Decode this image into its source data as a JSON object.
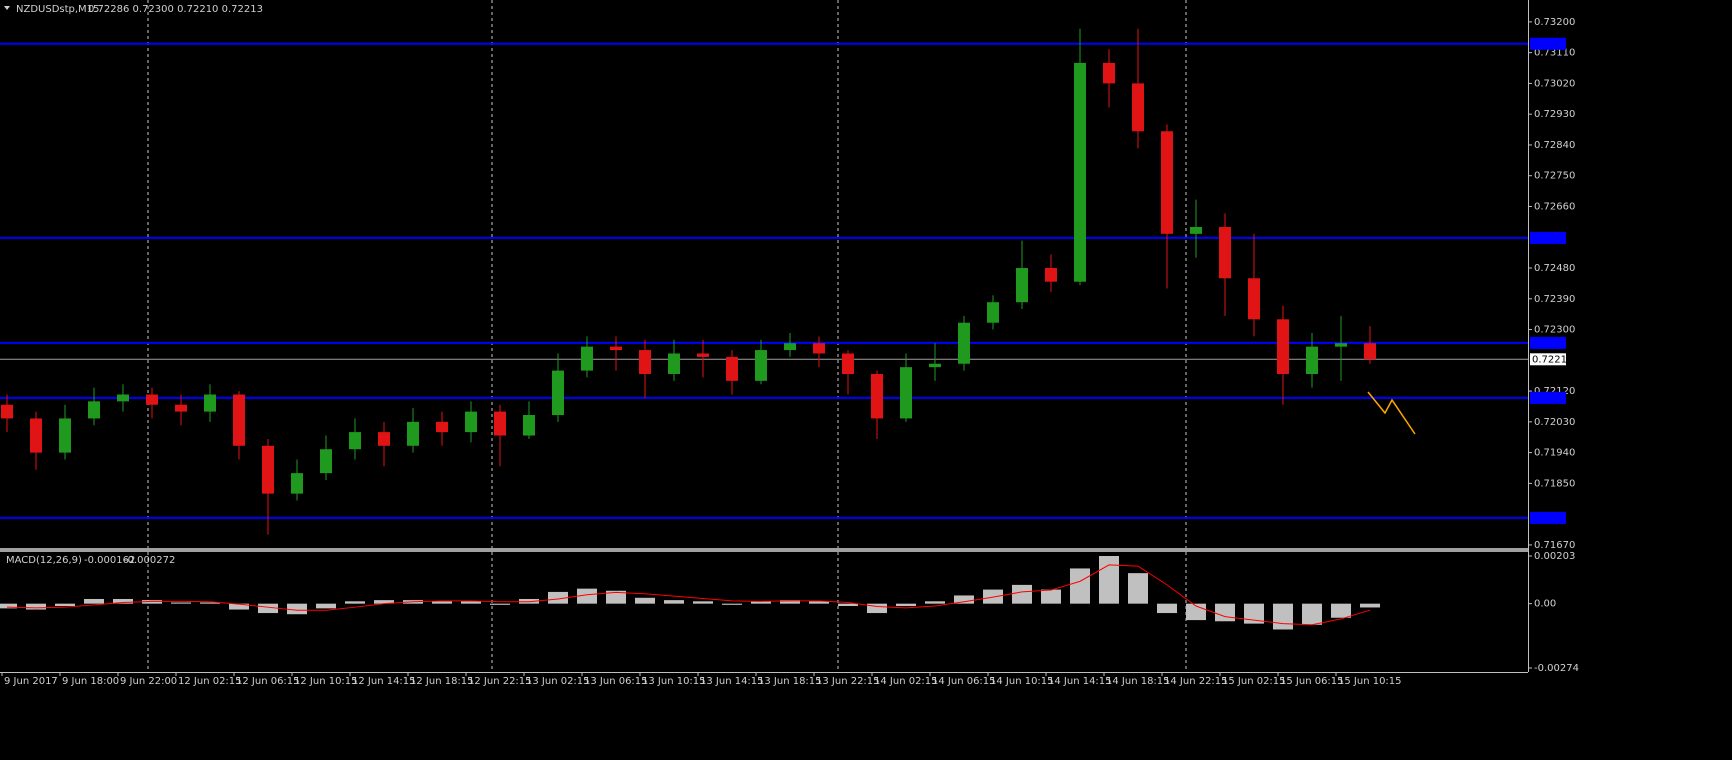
{
  "chart_data": [
    {
      "type": "candlestick",
      "title": "NZDUSDstp,M15",
      "subtitle": "0.72286 0.72300 0.72210 0.72213",
      "open": [
        0.7208,
        0.7204,
        0.7194,
        0.7204,
        0.7209,
        0.7211,
        0.7208,
        0.7206,
        0.7211,
        0.7196,
        0.7182,
        0.7188,
        0.7195,
        0.72,
        0.7196,
        0.7203,
        0.72,
        0.7206,
        0.7199,
        0.7205,
        0.7218,
        0.7225,
        0.7224,
        0.7217,
        0.7223,
        0.7222,
        0.7215,
        0.7224,
        0.7226,
        0.7223,
        0.7217,
        0.7204,
        0.7219,
        0.722,
        0.7232,
        0.7238,
        0.7248,
        0.7244,
        0.7308,
        0.7302,
        0.7288,
        0.7258,
        0.726,
        0.7245,
        0.7233,
        0.7217,
        0.7225,
        0.7226
      ],
      "high": [
        0.7211,
        0.7206,
        0.7208,
        0.7213,
        0.7214,
        0.7213,
        0.7211,
        0.7214,
        0.7212,
        0.7198,
        0.7192,
        0.7199,
        0.7204,
        0.7203,
        0.7207,
        0.7206,
        0.7209,
        0.7208,
        0.7209,
        0.7223,
        0.7228,
        0.7228,
        0.7227,
        0.7227,
        0.7227,
        0.7224,
        0.7227,
        0.7229,
        0.7228,
        0.7224,
        0.7218,
        0.7223,
        0.7226,
        0.7234,
        0.724,
        0.7256,
        0.7252,
        0.7318,
        0.7312,
        0.7318,
        0.729,
        0.7268,
        0.7264,
        0.7258,
        0.7237,
        0.7229,
        0.7234,
        0.7231
      ],
      "low": [
        0.72,
        0.7189,
        0.7192,
        0.7202,
        0.7206,
        0.7204,
        0.7202,
        0.7203,
        0.7192,
        0.717,
        0.718,
        0.7186,
        0.7192,
        0.719,
        0.7194,
        0.7196,
        0.7197,
        0.719,
        0.7198,
        0.7203,
        0.7216,
        0.7218,
        0.721,
        0.7215,
        0.7216,
        0.7211,
        0.7214,
        0.7222,
        0.7219,
        0.7211,
        0.7198,
        0.7203,
        0.7215,
        0.7218,
        0.723,
        0.7236,
        0.7241,
        0.7243,
        0.7295,
        0.7283,
        0.7242,
        0.7251,
        0.7234,
        0.7228,
        0.7208,
        0.7213,
        0.7215,
        0.722
      ],
      "close": [
        0.7204,
        0.7194,
        0.7204,
        0.7209,
        0.7211,
        0.7208,
        0.7206,
        0.7211,
        0.7196,
        0.7182,
        0.7188,
        0.7195,
        0.72,
        0.7196,
        0.7203,
        0.72,
        0.7206,
        0.7199,
        0.7205,
        0.7218,
        0.7225,
        0.7224,
        0.7217,
        0.7223,
        0.7222,
        0.7215,
        0.7224,
        0.7226,
        0.7223,
        0.7217,
        0.7204,
        0.7219,
        0.722,
        0.7232,
        0.7238,
        0.7248,
        0.7244,
        0.7308,
        0.7302,
        0.7288,
        0.7258,
        0.726,
        0.7245,
        0.7233,
        0.7217,
        0.7225,
        0.7226,
        0.72213
      ],
      "up_color": "#1f9a1f",
      "down_color": "#e01414",
      "x_labels": [
        "9 Jun 2017",
        "9 Jun 18:00",
        "9 Jun 22:00",
        "12 Jun 02:15",
        "12 Jun 06:15",
        "12 Jun 10:15",
        "12 Jun 14:15",
        "12 Jun 18:15",
        "12 Jun 22:15",
        "13 Jun 02:15",
        "13 Jun 06:15",
        "13 Jun 10:15",
        "13 Jun 14:15",
        "13 Jun 18:15",
        "13 Jun 22:15",
        "14 Jun 02:15",
        "14 Jun 06:15",
        "14 Jun 10:15",
        "14 Jun 14:15",
        "14 Jun 18:15",
        "14 Jun 22:15",
        "15 Jun 02:15",
        "15 Jun 06:15",
        "15 Jun 10:15"
      ],
      "ylim": [
        0.71661,
        0.73264
      ],
      "yticks": [
        {
          "value": 0.732,
          "label": "0.73200"
        },
        {
          "value": 0.7311,
          "label": "0.73110"
        },
        {
          "value": 0.7302,
          "label": "0.73020"
        },
        {
          "value": 0.7293,
          "label": "0.72930"
        },
        {
          "value": 0.7284,
          "label": "0.72840"
        },
        {
          "value": 0.7275,
          "label": "0.72750"
        },
        {
          "value": 0.7266,
          "label": "0.72660"
        },
        {
          "value": 0.7248,
          "label": "0.72480"
        },
        {
          "value": 0.7239,
          "label": "0.72390"
        },
        {
          "value": 0.723,
          "label": "0.72300"
        },
        {
          "value": 0.7212,
          "label": "0.72120"
        },
        {
          "value": 0.7203,
          "label": "0.72030"
        },
        {
          "value": 0.7194,
          "label": "0.71940"
        },
        {
          "value": 0.7185,
          "label": "0.71850"
        },
        {
          "value": 0.7167,
          "label": "0.71670"
        }
      ],
      "hlines": [
        0.73136,
        0.72568,
        0.72261,
        0.721,
        0.71749
      ],
      "hline_color": "#0000ff",
      "current_price": 0.72213,
      "grid": false
    },
    {
      "type": "macd",
      "title": "MACD(12,26,9)",
      "series": [
        {
          "color": "#c0c0c0",
          "values": [
            -0.0002,
            -0.00025,
            -0.0001,
            0.0002,
            0.0002,
            0.00015,
            5e-05,
            5e-05,
            -0.00025,
            -0.0004,
            -0.00045,
            -0.0002,
            0.0001,
            0.00015,
            0.00015,
            0.0001,
            0.0001,
            -5e-05,
            0.0002,
            0.0005,
            0.00064,
            0.00055,
            0.00025,
            0.00015,
            0.0001,
            -5e-05,
            0.0001,
            0.00015,
            0.0001,
            -0.0001,
            -0.0004,
            -0.0001,
            0.0001,
            0.00035,
            0.0006,
            0.0008,
            0.0006,
            0.0015,
            0.00203,
            0.0013,
            -0.0004,
            -0.0007,
            -0.00075,
            -0.00085,
            -0.0011,
            -0.0009,
            -0.0006,
            -0.000162
          ]
        },
        {
          "color": "#ff0000",
          "values": [
            -0.00015,
            -0.00018,
            -0.00015,
            -5e-05,
            5e-05,
            0.0001,
            0.0001,
            8e-05,
            -2e-05,
            -0.00015,
            -0.00028,
            -0.00028,
            -0.00015,
            0,
            8e-05,
            0.00012,
            0.00012,
            8e-05,
            8e-05,
            0.0002,
            0.00038,
            0.00048,
            0.00042,
            0.00032,
            0.00022,
            0.00012,
            0.0001,
            0.00012,
            0.00012,
            5e-05,
            -0.00012,
            -0.00018,
            -0.0001,
            8e-05,
            0.00028,
            0.0005,
            0.00058,
            0.00095,
            0.00165,
            0.0016,
            0.0008,
            -0.0001,
            -0.00055,
            -0.0007,
            -0.00085,
            -0.0009,
            -0.00065,
            -0.000272
          ]
        }
      ],
      "ylim": [
        -0.00274,
        0.00203
      ],
      "yticks": [
        0.00203,
        {
          "value": 0,
          "label": "0.00"
        },
        -0.00274
      ]
    }
  ]
}
